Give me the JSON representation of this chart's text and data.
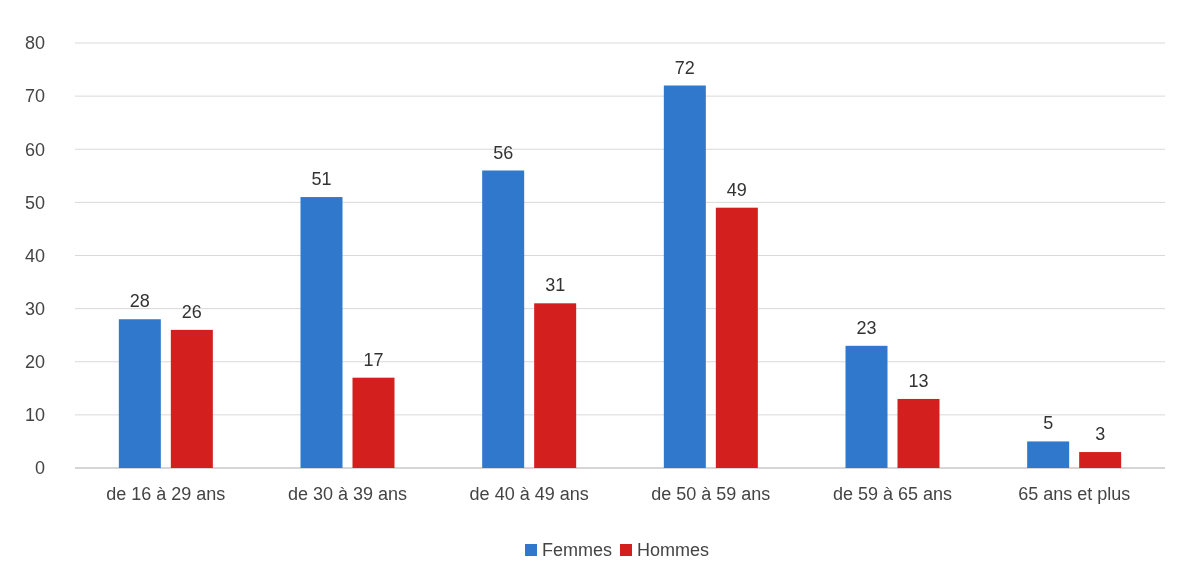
{
  "chart_data": {
    "type": "bar",
    "categories": [
      "de 16 à 29 ans",
      "de 30 à 39 ans",
      "de 40 à 49 ans",
      "de 50 à 59 ans",
      "de 59 à 65 ans",
      "65 ans et plus"
    ],
    "series": [
      {
        "name": "Femmes",
        "color": "#2f78cc",
        "values": [
          28,
          51,
          56,
          72,
          23,
          5
        ]
      },
      {
        "name": "Hommes",
        "color": "#d41f1f",
        "values": [
          26,
          17,
          31,
          49,
          13,
          3
        ]
      }
    ],
    "ylim": [
      0,
      80
    ],
    "yticks": [
      0,
      10,
      20,
      30,
      40,
      50,
      60,
      70,
      80
    ],
    "grid": "y",
    "data_labels": true,
    "legend": "bottom"
  }
}
